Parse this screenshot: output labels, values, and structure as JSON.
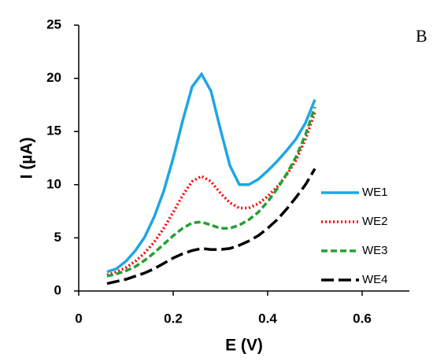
{
  "chart_data": {
    "type": "line",
    "x_label": "E (V)",
    "y_label": "I (µA)",
    "panel_label": "B",
    "x": [
      0.06,
      0.08,
      0.1,
      0.12,
      0.14,
      0.16,
      0.18,
      0.2,
      0.22,
      0.24,
      0.26,
      0.28,
      0.3,
      0.32,
      0.34,
      0.36,
      0.38,
      0.4,
      0.42,
      0.44,
      0.46,
      0.48,
      0.5
    ],
    "series": [
      {
        "name": "WE1",
        "color": "#1ea6e6",
        "style": "solid",
        "values": [
          1.8,
          2.1,
          2.8,
          3.8,
          5.1,
          7.0,
          9.4,
          12.5,
          16.0,
          19.2,
          20.4,
          18.8,
          15.2,
          11.8,
          10.0,
          10.0,
          10.5,
          11.3,
          12.2,
          13.2,
          14.3,
          15.8,
          18.0
        ]
      },
      {
        "name": "WE2",
        "color": "#ff0000",
        "style": "dotted",
        "values": [
          1.5,
          1.8,
          2.2,
          2.8,
          3.6,
          4.6,
          5.9,
          7.4,
          9.0,
          10.3,
          10.8,
          10.3,
          9.2,
          8.3,
          7.8,
          7.8,
          8.2,
          8.9,
          9.8,
          10.9,
          12.3,
          14.3,
          16.8
        ]
      },
      {
        "name": "WE3",
        "color": "#22a030",
        "style": "dashed",
        "values": [
          1.4,
          1.6,
          1.9,
          2.3,
          2.9,
          3.6,
          4.4,
          5.2,
          5.9,
          6.4,
          6.5,
          6.2,
          5.9,
          5.9,
          6.2,
          6.7,
          7.4,
          8.4,
          9.6,
          11.0,
          12.6,
          14.7,
          17.3
        ]
      },
      {
        "name": "WE4",
        "color": "#000000",
        "style": "longdash",
        "values": [
          0.7,
          0.9,
          1.1,
          1.4,
          1.7,
          2.1,
          2.6,
          3.1,
          3.5,
          3.8,
          4.0,
          3.9,
          3.9,
          4.0,
          4.3,
          4.7,
          5.2,
          5.9,
          6.7,
          7.7,
          8.8,
          10.0,
          11.5
        ]
      }
    ],
    "xlim": [
      0,
      0.7
    ],
    "xticks": [
      0,
      0.2,
      0.4,
      0.6
    ],
    "ylim": [
      0,
      25
    ],
    "yticks": [
      0,
      5,
      10,
      15,
      20,
      25
    ],
    "legend": "right"
  }
}
